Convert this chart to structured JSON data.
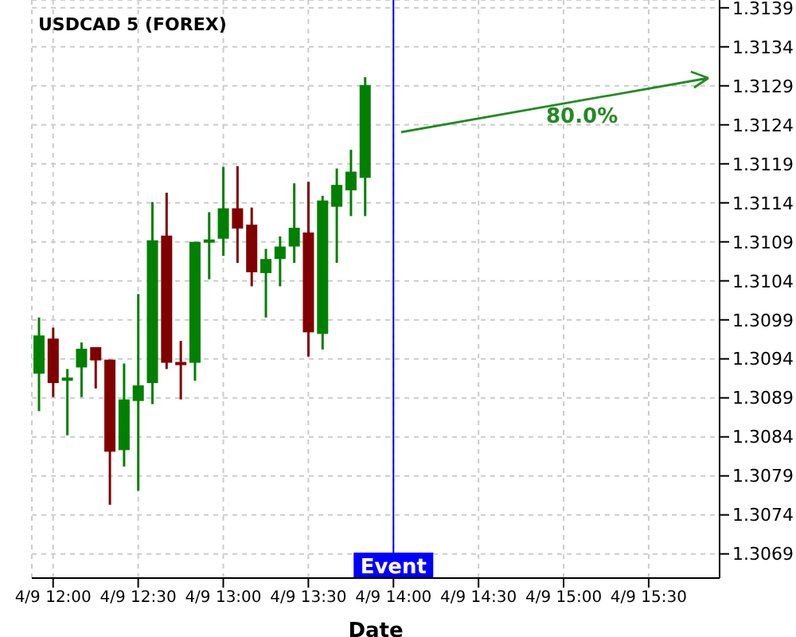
{
  "chart_data": {
    "type": "candlestick",
    "title": "USDCAD 5 (FOREX)",
    "xlabel": "Date",
    "x": [
      "--04-09T11:55",
      "--04-09T12:00",
      "--04-09T12:05",
      "--04-09T12:10",
      "--04-09T12:15",
      "--04-09T12:20",
      "--04-09T12:25",
      "--04-09T12:30",
      "--04-09T12:35",
      "--04-09T12:40",
      "--04-09T12:45",
      "--04-09T12:50",
      "--04-09T12:55",
      "--04-09T13:00",
      "--04-09T13:05",
      "--04-09T13:10",
      "--04-09T13:15",
      "--04-09T13:20",
      "--04-09T13:25",
      "--04-09T13:30",
      "--04-09T13:35",
      "--04-09T13:40",
      "--04-09T13:45",
      "--04-09T13:50"
    ],
    "ohlc": [
      [
        1.30921,
        1.30993,
        1.30873,
        1.3097
      ],
      [
        1.30966,
        1.3098,
        1.30891,
        1.30909
      ],
      [
        1.30914,
        1.30927,
        1.30842,
        1.30914
      ],
      [
        1.30929,
        1.30961,
        1.30891,
        1.30953
      ],
      [
        1.30955,
        1.30955,
        1.30902,
        1.30938
      ],
      [
        1.30939,
        1.30939,
        1.30753,
        1.30821
      ],
      [
        1.30823,
        1.30934,
        1.30802,
        1.30888
      ],
      [
        1.30886,
        1.31023,
        1.30771,
        1.30906
      ],
      [
        1.30909,
        1.31141,
        1.30882,
        1.31092
      ],
      [
        1.31098,
        1.31153,
        1.30927,
        1.30935
      ],
      [
        1.30934,
        1.30963,
        1.30888,
        1.30934
      ],
      [
        1.30935,
        1.3109,
        1.30912,
        1.3109
      ],
      [
        1.31091,
        1.31128,
        1.31042,
        1.31091
      ],
      [
        1.31094,
        1.31186,
        1.31072,
        1.31133
      ],
      [
        1.31133,
        1.31187,
        1.31063,
        1.31107
      ],
      [
        1.31112,
        1.31134,
        1.31033,
        1.31051
      ],
      [
        1.3105,
        1.31081,
        1.30993,
        1.31068
      ],
      [
        1.31068,
        1.31097,
        1.31033,
        1.31084
      ],
      [
        1.31084,
        1.31165,
        1.31063,
        1.31108
      ],
      [
        1.31102,
        1.31167,
        1.30943,
        1.30974
      ],
      [
        1.30972,
        1.31149,
        1.30952,
        1.31143
      ],
      [
        1.31135,
        1.31184,
        1.31063,
        1.31163
      ],
      [
        1.31156,
        1.31208,
        1.31123,
        1.3118
      ],
      [
        1.31172,
        1.31301,
        1.31123,
        1.31291
      ]
    ],
    "colors": [
      "#008000",
      "#800000",
      "#008000",
      "#008000",
      "#800000",
      "#800000",
      "#008000",
      "#008000",
      "#008000",
      "#800000",
      "#800000",
      "#008000",
      "#008000",
      "#008000",
      "#800000",
      "#800000",
      "#008000",
      "#008000",
      "#008000",
      "#800000",
      "#008000",
      "#008000",
      "#008000",
      "#008000"
    ],
    "annotations": [
      "80.0%"
    ],
    "ref_lines": [
      {
        "axis": "x",
        "value": "--04-09T14:00",
        "label": "Event",
        "color": "#0000ff"
      }
    ],
    "xlim": [
      "--04-09T11:52:30",
      "--04-09T15:55"
    ],
    "xticks": [
      {
        "value": "--04-09T12:00",
        "label": "4/9 12:00"
      },
      {
        "value": "--04-09T12:30",
        "label": "4/9 12:30"
      },
      {
        "value": "--04-09T13:00",
        "label": "4/9 13:00"
      },
      {
        "value": "--04-09T13:30",
        "label": "4/9 13:30"
      },
      {
        "value": "--04-09T14:00",
        "label": "4/9 14:00"
      },
      {
        "value": "--04-09T14:30",
        "label": "4/9 14:30"
      },
      {
        "value": "--04-09T15:00",
        "label": "4/9 15:00"
      },
      {
        "value": "--04-09T15:30",
        "label": "4/9 15:30"
      }
    ],
    "ylim": [
      1.30659,
      1.314
    ],
    "yticks": [
      1.3069,
      1.3074,
      1.3079,
      1.3084,
      1.3089,
      1.3094,
      1.3099,
      1.3104,
      1.3109,
      1.3114,
      1.3119,
      1.3124,
      1.3129,
      1.3134,
      1.3139
    ],
    "grid": true
  }
}
